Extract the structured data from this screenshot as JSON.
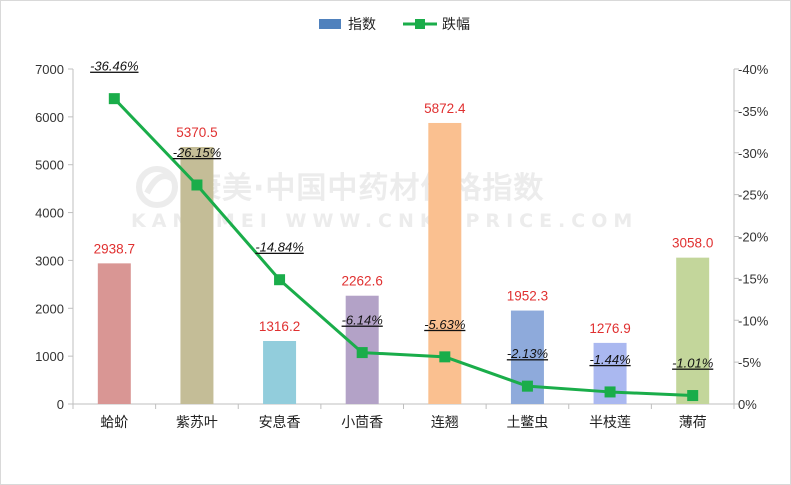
{
  "chart_data": {
    "type": "bar",
    "categories": [
      "蛤蚧",
      "紫苏叶",
      "安息香",
      "小茴香",
      "连翘",
      "土鳖虫",
      "半枝莲",
      "薄荷"
    ],
    "series": [
      {
        "name": "指数",
        "type": "bar",
        "axis": "left",
        "values": [
          2938.7,
          5370.5,
          1316.2,
          2262.6,
          5872.4,
          1952.3,
          1276.9,
          3058.0
        ],
        "labels": [
          "2938.7",
          "5370.5",
          "1316.2",
          "2262.6",
          "5872.4",
          "1952.3",
          "1276.9",
          "3058.0"
        ],
        "colors": [
          "#d99694",
          "#c4bd97",
          "#92cddc",
          "#b3a2c7",
          "#fac090",
          "#8eaadb",
          "#aab8f0",
          "#c3d69b"
        ]
      },
      {
        "name": "跌幅",
        "type": "line",
        "axis": "right",
        "values": [
          -36.46,
          -26.15,
          -14.84,
          -6.14,
          -5.63,
          -2.13,
          -1.44,
          -1.01
        ],
        "labels": [
          "-36.46%",
          "-26.15%",
          "-14.84%",
          "-6.14%",
          "-5.63%",
          "-2.13%",
          "-1.44%",
          "-1.01%"
        ],
        "color": "#1aad4a"
      }
    ],
    "left_axis": {
      "ylim": [
        0,
        7000
      ],
      "ticks": [
        "0",
        "1000",
        "2000",
        "3000",
        "4000",
        "5000",
        "6000",
        "7000"
      ]
    },
    "right_axis": {
      "ylim": [
        0,
        -40
      ],
      "reversed": true,
      "ticks": [
        "0%",
        "-5%",
        "-10%",
        "-15%",
        "-20%",
        "-25%",
        "-30%",
        "-35%",
        "-40%"
      ]
    },
    "legend": {
      "position": "top-center",
      "entries": [
        "指数",
        "跌幅"
      ]
    },
    "grid": false
  },
  "watermark": {
    "chinese": "康美·中国中药材价格指数",
    "english": "KANGMEI  WWW.CNKMPRICE.COM",
    "color": "#ececec"
  }
}
